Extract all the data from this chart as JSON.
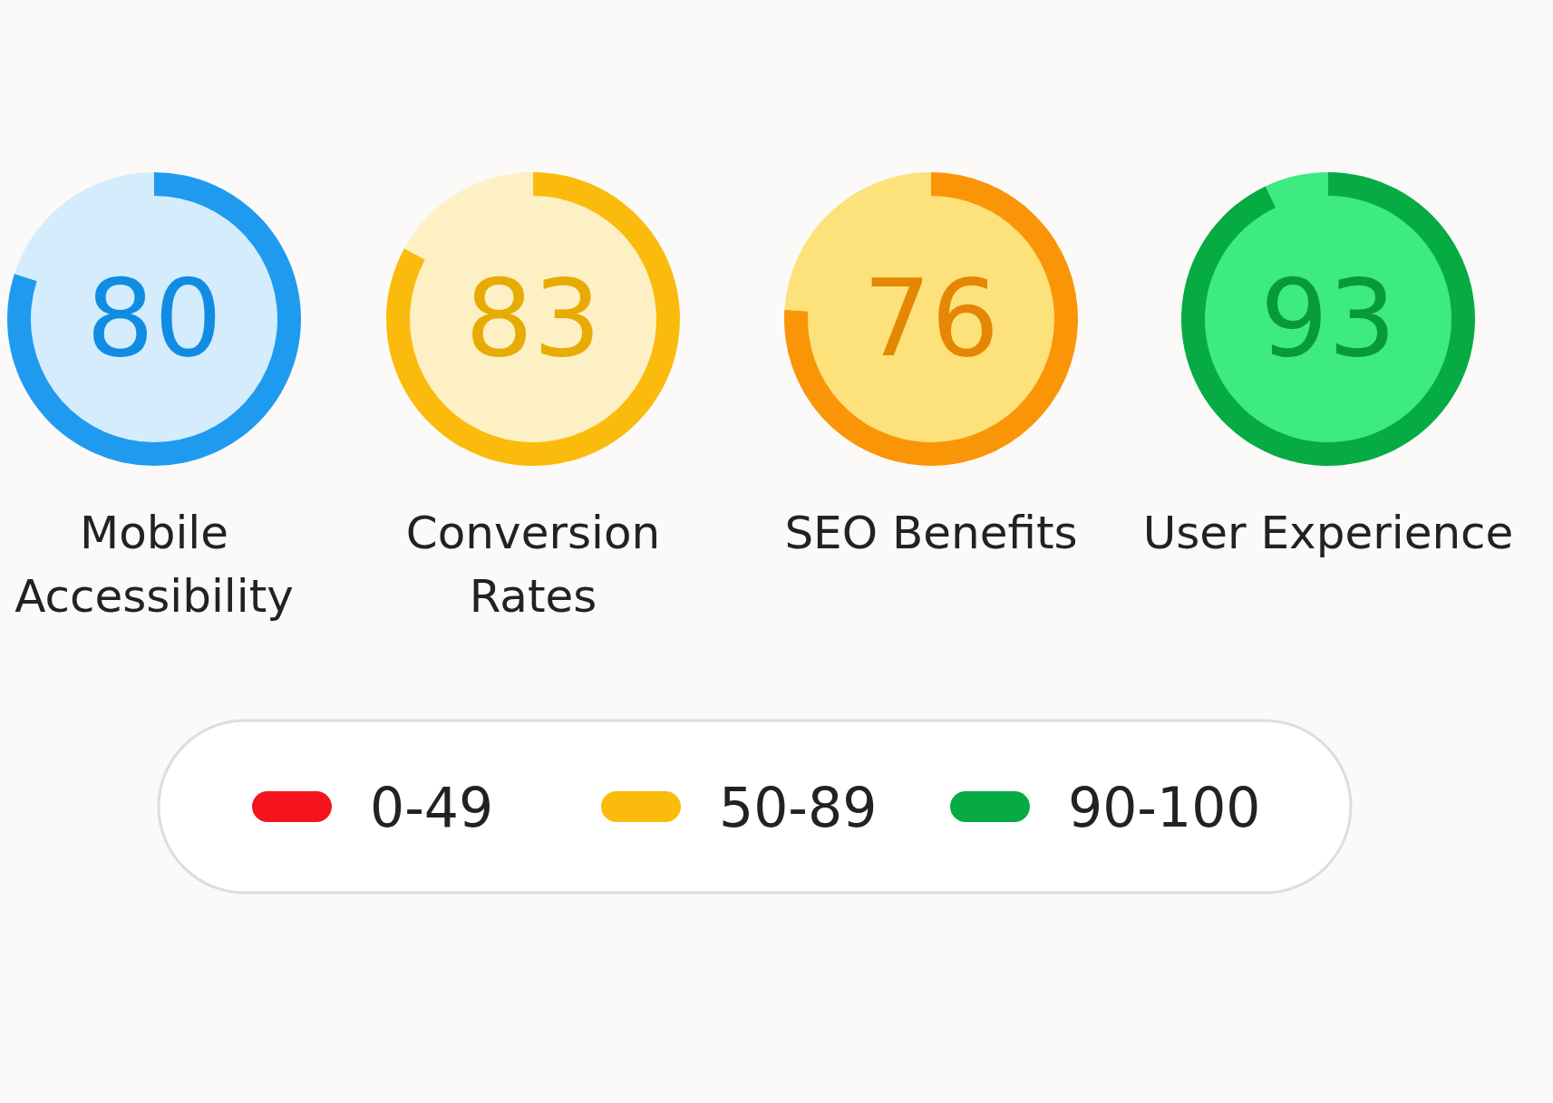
{
  "chart_data": [
    {
      "type": "donut",
      "title": "Mobile Accessibility",
      "categories": [
        null,
        null
      ],
      "values": [
        80,
        20
      ],
      "colors": [
        "#1e9bef",
        "#d4ecfc"
      ],
      "value_labels": [
        "80",
        null
      ]
    },
    {
      "type": "donut",
      "title": "Conversion Rates",
      "categories": [
        null,
        null
      ],
      "values": [
        83,
        17
      ],
      "colors": [
        "#fbbb0c",
        "#fdf0c4"
      ],
      "value_labels": [
        "83",
        null
      ]
    },
    {
      "type": "donut",
      "title": "SEO Benefits",
      "categories": [
        null,
        null
      ],
      "values": [
        76,
        24
      ],
      "colors": [
        "#fb9508",
        "#fde17a"
      ],
      "value_labels": [
        "76",
        null
      ]
    },
    {
      "type": "donut",
      "title": "User Experience",
      "categories": [
        null,
        null
      ],
      "values": [
        93,
        7
      ],
      "colors": [
        "#07ab43",
        "#3deb80"
      ],
      "value_labels": [
        "93",
        null
      ]
    },
    {
      "type": "other",
      "categories": [
        "0-49",
        "50-89",
        "90-100"
      ],
      "colors": [
        "#f5141e",
        "#fbbb0c",
        "#07ab43"
      ]
    }
  ]
}
